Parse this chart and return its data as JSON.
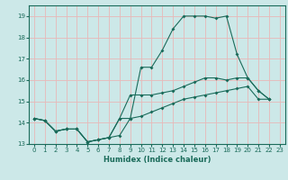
{
  "title": "",
  "xlabel": "Humidex (Indice chaleur)",
  "xlim": [
    -0.5,
    23.5
  ],
  "ylim": [
    13,
    19.5
  ],
  "yticks": [
    13,
    14,
    15,
    16,
    17,
    18,
    19
  ],
  "xticks": [
    0,
    1,
    2,
    3,
    4,
    5,
    6,
    7,
    8,
    9,
    10,
    11,
    12,
    13,
    14,
    15,
    16,
    17,
    18,
    19,
    20,
    21,
    22,
    23
  ],
  "bg_color": "#cce8e8",
  "line_color": "#1a6b5a",
  "grid_color": "#e8b8b8",
  "lines": [
    {
      "x": [
        0,
        1,
        2,
        3,
        4,
        5,
        6,
        7,
        8,
        9,
        10,
        11,
        12,
        13,
        14,
        15,
        16,
        17,
        18,
        19,
        20,
        21,
        22
      ],
      "y": [
        14.2,
        14.1,
        13.6,
        13.7,
        13.7,
        13.1,
        13.2,
        13.3,
        13.4,
        14.2,
        16.6,
        16.6,
        17.4,
        18.4,
        19.0,
        19.0,
        19.0,
        18.9,
        19.0,
        17.2,
        16.1,
        15.5,
        15.1
      ]
    },
    {
      "x": [
        0,
        1,
        2,
        3,
        4,
        5,
        6,
        7,
        8,
        9,
        10,
        11,
        12,
        13,
        14,
        15,
        16,
        17,
        18,
        19,
        20,
        21,
        22
      ],
      "y": [
        14.2,
        14.1,
        13.6,
        13.7,
        13.7,
        13.1,
        13.2,
        13.3,
        14.2,
        15.3,
        15.3,
        15.3,
        15.4,
        15.5,
        15.7,
        15.9,
        16.1,
        16.1,
        16.0,
        16.1,
        16.1,
        15.5,
        15.1
      ]
    },
    {
      "x": [
        0,
        1,
        2,
        3,
        4,
        5,
        6,
        7,
        8,
        9,
        10,
        11,
        12,
        13,
        14,
        15,
        16,
        17,
        18,
        19,
        20,
        21,
        22
      ],
      "y": [
        14.2,
        14.1,
        13.6,
        13.7,
        13.7,
        13.1,
        13.2,
        13.3,
        14.2,
        14.2,
        14.3,
        14.5,
        14.7,
        14.9,
        15.1,
        15.2,
        15.3,
        15.4,
        15.5,
        15.6,
        15.7,
        15.1,
        15.1
      ]
    }
  ]
}
